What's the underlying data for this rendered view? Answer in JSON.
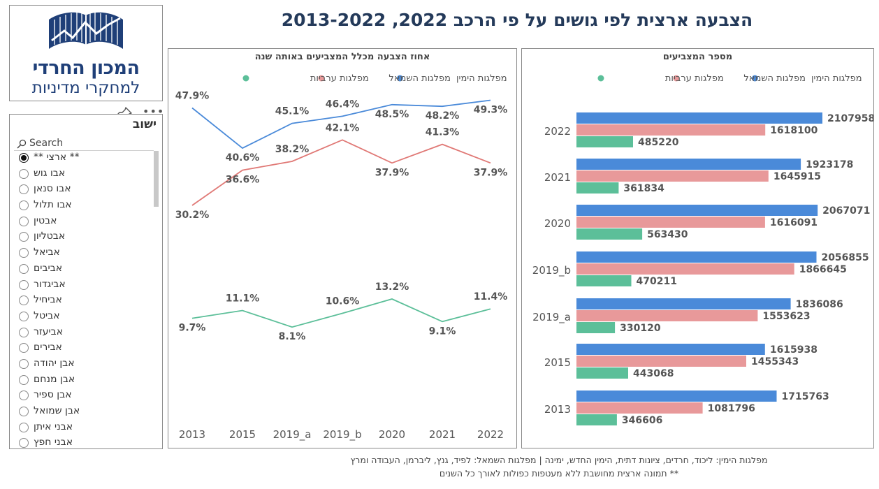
{
  "logo": {
    "line1": "המכון החרדי",
    "line2": "למחקרי מדיניות"
  },
  "title": "הצבעה ארצית לפי גושים על פי הרכב 2022, 2013-2022",
  "slicer": {
    "title": "ישוב",
    "search_placeholder": "Search",
    "items": [
      {
        "label": "** ארצי **",
        "checked": true
      },
      {
        "label": "אבו גוש",
        "checked": false
      },
      {
        "label": "אבו סנאן",
        "checked": false
      },
      {
        "label": "אבו תלול",
        "checked": false
      },
      {
        "label": "אבטין",
        "checked": false
      },
      {
        "label": "אבטליון",
        "checked": false
      },
      {
        "label": "אביאל",
        "checked": false
      },
      {
        "label": "אביבים",
        "checked": false
      },
      {
        "label": "אביגדור",
        "checked": false
      },
      {
        "label": "אביחיל",
        "checked": false
      },
      {
        "label": "אביטל",
        "checked": false
      },
      {
        "label": "אביעזר",
        "checked": false
      },
      {
        "label": "אבירים",
        "checked": false
      },
      {
        "label": "אבן יהודה",
        "checked": false
      },
      {
        "label": "אבן מנחם",
        "checked": false
      },
      {
        "label": "אבן ספיר",
        "checked": false
      },
      {
        "label": "אבן שמואל",
        "checked": false
      },
      {
        "label": "אבני איתן",
        "checked": false
      },
      {
        "label": "אבני חפץ",
        "checked": false
      }
    ]
  },
  "colors": {
    "right": "#4a8ad9",
    "left": "#e8999a",
    "arab": "#5cbf99",
    "right_line": "#4a8ad9",
    "left_line": "#e07875",
    "arab_line": "#5cbf99"
  },
  "chart_data": [
    {
      "type": "line",
      "title": "אחוז הצבעה מכלל המצביעים באותה שנה",
      "categories": [
        "2013",
        "2015",
        "2019_a",
        "2019_b",
        "2020",
        "2021",
        "2022"
      ],
      "series": [
        {
          "name": "מפלגות הימין",
          "key": "right",
          "values": [
            47.9,
            40.6,
            45.1,
            46.4,
            48.5,
            48.2,
            49.3
          ],
          "labels": [
            "47.9%",
            "40.6%",
            "45.1%",
            "46.4%",
            "48.5%",
            "48.2%",
            "49.3%"
          ]
        },
        {
          "name": "מפלגות השמאל",
          "key": "left",
          "values": [
            30.2,
            36.6,
            38.2,
            42.1,
            37.9,
            41.3,
            37.9
          ],
          "labels": [
            "30.2%",
            "36.6%",
            "38.2%",
            "42.1%",
            "37.9%",
            "41.3%",
            "37.9%"
          ]
        },
        {
          "name": "מפלגות ערביות",
          "key": "arab",
          "values": [
            9.7,
            11.1,
            8.1,
            10.6,
            13.2,
            9.1,
            11.4
          ],
          "labels": [
            "9.7%",
            "11.1%",
            "8.1%",
            "10.6%",
            "13.2%",
            "9.1%",
            "11.4%"
          ]
        }
      ],
      "legend_position": "top"
    },
    {
      "type": "bar",
      "orientation": "horizontal",
      "title": "מספר המצביעים",
      "categories": [
        "2022",
        "2021",
        "2020",
        "2019_b",
        "2019_a",
        "2015",
        "2013"
      ],
      "series": [
        {
          "name": "מפלגות הימין",
          "key": "right",
          "values": [
            2107958,
            1923178,
            2067071,
            2056855,
            1836086,
            1615938,
            1715763
          ]
        },
        {
          "name": "מפלגות השמאל",
          "key": "left",
          "values": [
            1618100,
            1645915,
            1616091,
            1866645,
            1553623,
            1455343,
            1081796
          ]
        },
        {
          "name": "מפלגות ערביות",
          "key": "arab",
          "values": [
            485220,
            361834,
            563430,
            470211,
            330120,
            443068,
            346606
          ]
        }
      ],
      "legend_position": "top"
    }
  ],
  "footnotes": [
    "מפלגות הימין: ליכוד, חרדים, ציונות דתית, הימין החדש, ימינה | מפלגות השמאל: לפיד, גנץ, ליברמן, העבודה ומרץ",
    "** תמונה ארצית מחושבת ללא מעטפות כפולות לאורך כל השנים"
  ]
}
